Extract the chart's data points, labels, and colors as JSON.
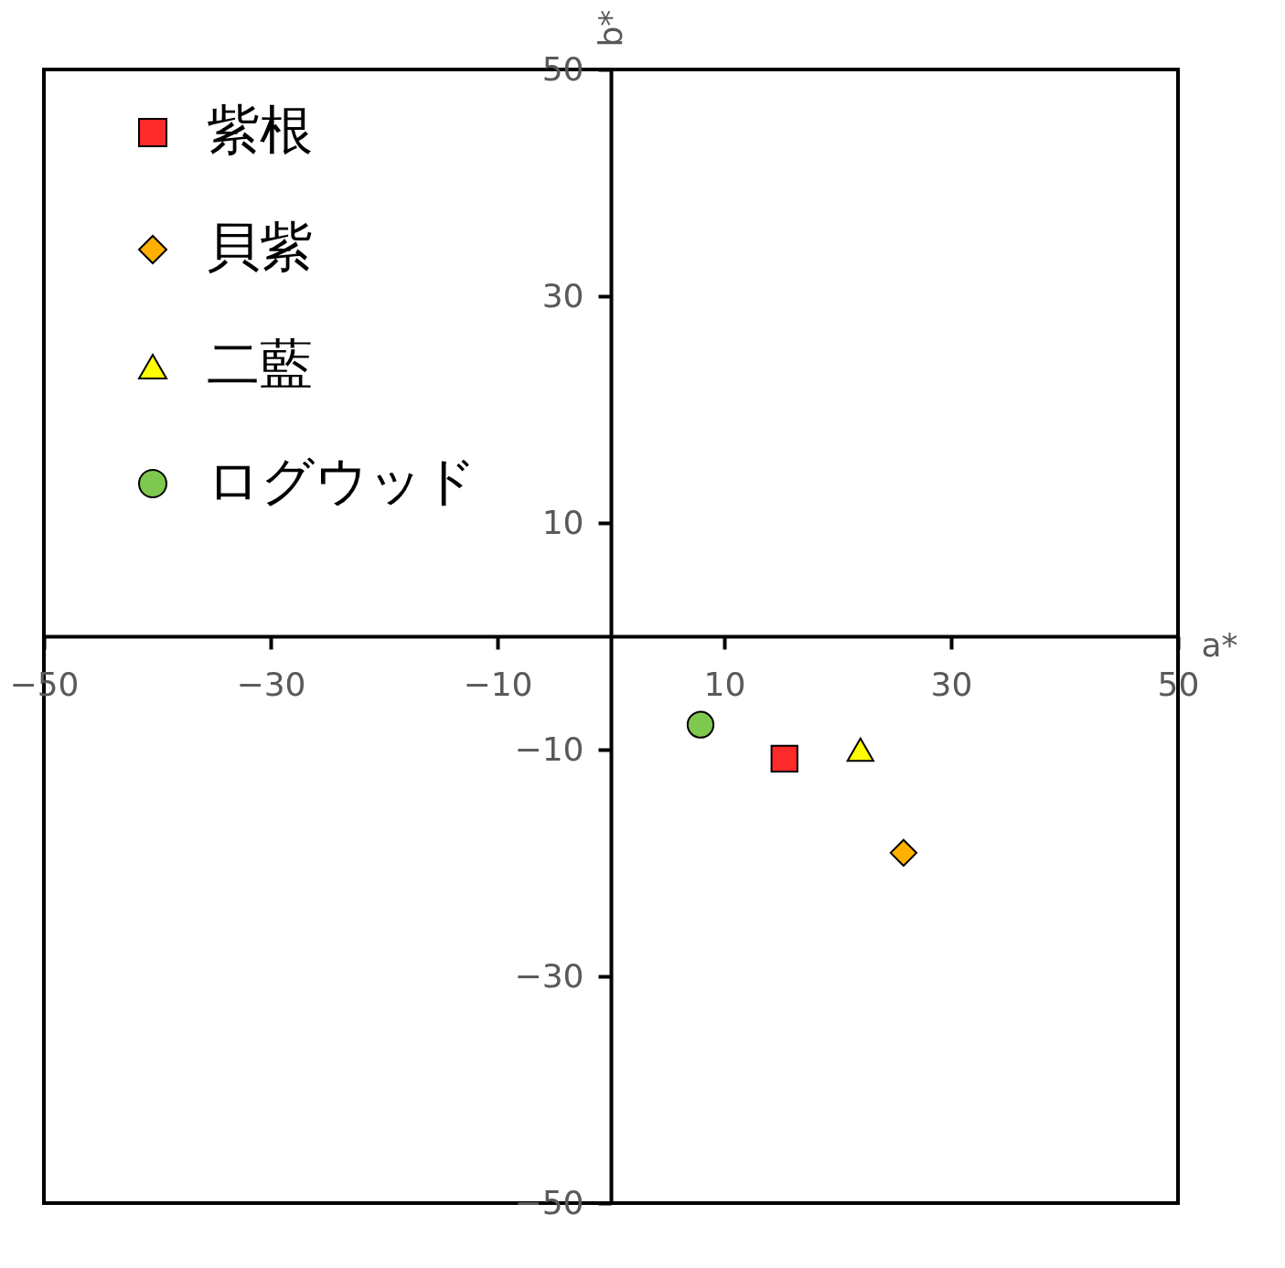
{
  "chart_data": {
    "type": "scatter",
    "xlabel": "a*",
    "ylabel": "b*",
    "xlim": [
      -50,
      50
    ],
    "ylim": [
      -50,
      50
    ],
    "xticks": [
      -50,
      -30,
      -10,
      10,
      30,
      50
    ],
    "yticks": [
      -50,
      -30,
      -10,
      10,
      30,
      50
    ],
    "grid": false,
    "legend": "top left",
    "series": [
      {
        "name": "紫根",
        "color": "#ff2a2a",
        "marker": "square",
        "x": [
          15.3
        ],
        "values": [
          -10.8
        ]
      },
      {
        "name": "貝紫",
        "color": "#ffb000",
        "marker": "diamond",
        "x": [
          25.8
        ],
        "values": [
          -19.1
        ]
      },
      {
        "name": "二藍",
        "color": "#ffff00",
        "marker": "triangle",
        "x": [
          22.0
        ],
        "values": [
          -10.0
        ]
      },
      {
        "name": "ログウッド",
        "color": "#7ec850",
        "marker": "circle",
        "x": [
          7.9
        ],
        "values": [
          -7.8
        ]
      }
    ]
  }
}
